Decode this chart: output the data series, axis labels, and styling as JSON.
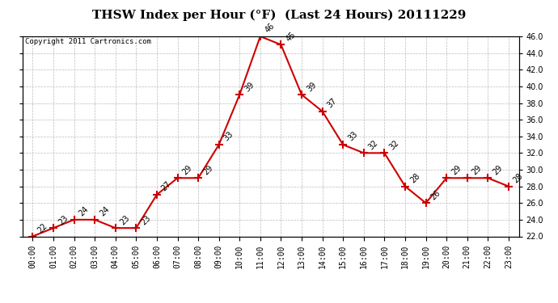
{
  "title": "THSW Index per Hour (°F)  (Last 24 Hours) 20111229",
  "copyright": "Copyright 2011 Cartronics.com",
  "hours": [
    "00:00",
    "01:00",
    "02:00",
    "03:00",
    "04:00",
    "05:00",
    "06:00",
    "07:00",
    "08:00",
    "09:00",
    "10:00",
    "11:00",
    "12:00",
    "13:00",
    "14:00",
    "15:00",
    "16:00",
    "17:00",
    "18:00",
    "19:00",
    "20:00",
    "21:00",
    "22:00",
    "23:00"
  ],
  "values": [
    22,
    23,
    24,
    24,
    23,
    23,
    27,
    29,
    29,
    33,
    39,
    46,
    45,
    39,
    37,
    33,
    32,
    32,
    28,
    26,
    29,
    29,
    29,
    28
  ],
  "ylim": [
    22.0,
    46.0
  ],
  "yticks": [
    22.0,
    24.0,
    26.0,
    28.0,
    30.0,
    32.0,
    34.0,
    36.0,
    38.0,
    40.0,
    42.0,
    44.0,
    46.0
  ],
  "line_color": "#cc0000",
  "marker": "+",
  "marker_color": "#cc0000",
  "marker_size": 7,
  "marker_linewidth": 1.5,
  "grid_color": "#bbbbbb",
  "bg_color": "#ffffff",
  "plot_bg_color": "#ffffff",
  "title_fontsize": 11,
  "label_fontsize": 7,
  "annotation_fontsize": 7,
  "copyright_fontsize": 6.5,
  "line_width": 1.5
}
